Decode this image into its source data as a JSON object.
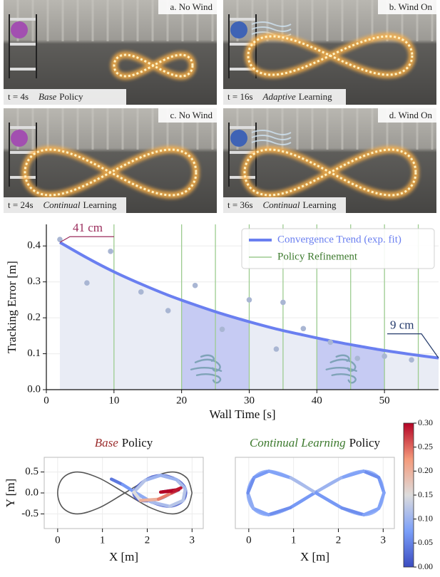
{
  "photos": [
    {
      "tag": "a. No Wind",
      "time": "t = 4s",
      "policy_italic": "Base",
      "policy_rest": "Policy"
    },
    {
      "tag": "b. Wind On",
      "time": "t = 16s",
      "policy_italic": "Adaptive",
      "policy_rest": "Learning"
    },
    {
      "tag": "c. No Wind",
      "time": "t = 24s",
      "policy_italic": "Continual",
      "policy_rest": "Learning"
    },
    {
      "tag": "d. Wind On",
      "time": "t = 36s",
      "policy_italic": "Continual",
      "policy_rest": "Learning"
    }
  ],
  "chart_data": [
    {
      "type": "scatter",
      "xlabel": "Wall Time  [s]",
      "ylabel": "Tracking Error [m]",
      "xlim": [
        0,
        58
      ],
      "ylim": [
        0,
        0.46
      ],
      "xticks": [
        0,
        10,
        20,
        30,
        40,
        50
      ],
      "yticks": [
        {
          "value": 0,
          "label": "0.0"
        },
        0.1,
        0.2,
        0.3,
        0.4
      ],
      "grid": true,
      "legend": "upper right",
      "points": {
        "color": "#a9b6d3",
        "x": [
          2,
          6,
          9.5,
          14,
          18,
          22,
          26,
          30,
          34,
          35,
          38,
          42,
          46,
          50,
          54
        ],
        "values": [
          0.418,
          0.297,
          0.385,
          0.272,
          0.22,
          0.29,
          0.168,
          0.25,
          0.113,
          0.243,
          0.17,
          0.132,
          0.087,
          0.093,
          0.083
        ]
      },
      "series": [
        {
          "name": "Convergence Trend (exp. fit)",
          "color": "#6a7ff0",
          "area_color": "#e9ecf5",
          "x": [
            2,
            6,
            10,
            14,
            18,
            22,
            26,
            30,
            34,
            38,
            42,
            46,
            50,
            54,
            58
          ],
          "values": [
            0.41,
            0.367,
            0.328,
            0.294,
            0.263,
            0.236,
            0.211,
            0.189,
            0.169,
            0.152,
            0.136,
            0.122,
            0.109,
            0.098,
            0.088
          ]
        }
      ],
      "refinement": {
        "name": "Policy Refinement",
        "color": "#9dcc90",
        "x": [
          10,
          20,
          25,
          30,
          35,
          40,
          45,
          50,
          55
        ]
      },
      "wind_spans": {
        "color": "#c6cbf3",
        "x": [
          [
            20,
            30
          ],
          [
            40,
            50
          ]
        ]
      },
      "annotations": [
        {
          "text": "41 cm",
          "x": 2,
          "y": 0.41,
          "color": "#9b2d5c"
        },
        {
          "text": "9 cm",
          "x": 58,
          "y": 0.088,
          "color": "#243a6b"
        }
      ]
    },
    {
      "type": "line",
      "title_italic": "Base",
      "title_rest": "Policy",
      "title_color": "#9b2d2d",
      "xlabel": "X [m]",
      "ylabel": "Y [m]",
      "xlim": [
        -0.3,
        3.25
      ],
      "ylim": [
        -0.85,
        0.85
      ],
      "xticks": [
        0,
        1,
        2,
        3
      ],
      "yticks": [
        -0.5,
        {
          "value": 0,
          "label": "0.0"
        },
        0.5
      ],
      "grid": true,
      "reference": {
        "color": "#555555",
        "x": [
          3,
          2.886,
          2.561,
          2.074,
          1.5,
          0.926,
          0.439,
          0.114,
          0,
          0.114,
          0.439,
          0.926,
          1.5,
          2.074,
          2.561,
          2.886,
          3
        ],
        "y": [
          0,
          0.354,
          0.5,
          0.354,
          0,
          -0.354,
          -0.5,
          -0.354,
          0,
          0.354,
          0.5,
          0.354,
          0,
          -0.354,
          -0.5,
          -0.354,
          0
        ]
      },
      "trajectory": {
        "x": [
          1.2,
          1.45,
          1.75,
          2.1,
          2.5,
          2.8,
          2.85,
          2.65,
          2.3,
          1.95,
          1.7,
          1.85,
          2.25,
          2.55,
          2.7,
          2.3,
          2.6,
          2.75
        ],
        "y": [
          0.33,
          0.2,
          0.0,
          -0.22,
          -0.32,
          -0.18,
          0.1,
          0.32,
          0.42,
          0.3,
          0.02,
          -0.18,
          -0.15,
          0.0,
          0.08,
          0.02,
          0.05,
          0.12
        ],
        "error": [
          0.01,
          0.04,
          0.07,
          0.09,
          0.11,
          0.12,
          0.12,
          0.11,
          0.1,
          0.1,
          0.12,
          0.15,
          0.2,
          0.24,
          0.27,
          0.3,
          0.3,
          0.29
        ]
      }
    },
    {
      "type": "line",
      "title_italic": "Continual Learning",
      "title_rest": "Policy",
      "title_color": "#3d7a2e",
      "xlabel": "X [m]",
      "xlim": [
        -0.3,
        3.25
      ],
      "ylim": [
        -0.85,
        0.85
      ],
      "xticks": [
        0,
        1,
        2,
        3
      ],
      "grid": true,
      "reference": {
        "color": "#555555",
        "x": [
          3,
          2.886,
          2.561,
          2.074,
          1.5,
          0.926,
          0.439,
          0.114,
          0,
          0.114,
          0.439,
          0.926,
          1.5,
          2.074,
          2.561,
          2.886,
          3
        ],
        "y": [
          0,
          0.354,
          0.5,
          0.354,
          0,
          -0.354,
          -0.5,
          -0.354,
          0,
          0.354,
          0.5,
          0.354,
          0,
          -0.354,
          -0.5,
          -0.354,
          0
        ]
      },
      "trajectory": {
        "x": [
          3.02,
          2.9,
          2.56,
          2.06,
          1.5,
          0.93,
          0.44,
          0.1,
          -0.02,
          0.12,
          0.45,
          0.94,
          1.5,
          2.08,
          2.57,
          2.9,
          3.02
        ],
        "y": [
          0.0,
          0.37,
          0.52,
          0.36,
          0.02,
          -0.35,
          -0.52,
          -0.37,
          0.0,
          0.37,
          0.52,
          0.36,
          0.0,
          -0.36,
          -0.52,
          -0.37,
          0.01
        ],
        "error": [
          0.08,
          0.07,
          0.06,
          0.08,
          0.1,
          0.07,
          0.06,
          0.08,
          0.09,
          0.06,
          0.07,
          0.08,
          0.11,
          0.07,
          0.06,
          0.08,
          0.08
        ]
      }
    },
    {
      "type": "colorbar",
      "colors": [
        "#3b4cc0",
        "#7b9ff9",
        "#dddcdc",
        "#f49a7b",
        "#b40426"
      ],
      "ylim": [
        0,
        0.3
      ],
      "yticks": [
        {
          "value": 0,
          "label": "0.00"
        },
        {
          "value": 0.05,
          "label": "0.05"
        },
        {
          "value": 0.1,
          "label": "0.10"
        },
        {
          "value": 0.15,
          "label": "0.15"
        },
        {
          "value": 0.2,
          "label": "0.20"
        },
        {
          "value": 0.25,
          "label": "0.25"
        },
        {
          "value": 0.3,
          "label": "0.30"
        }
      ]
    }
  ]
}
